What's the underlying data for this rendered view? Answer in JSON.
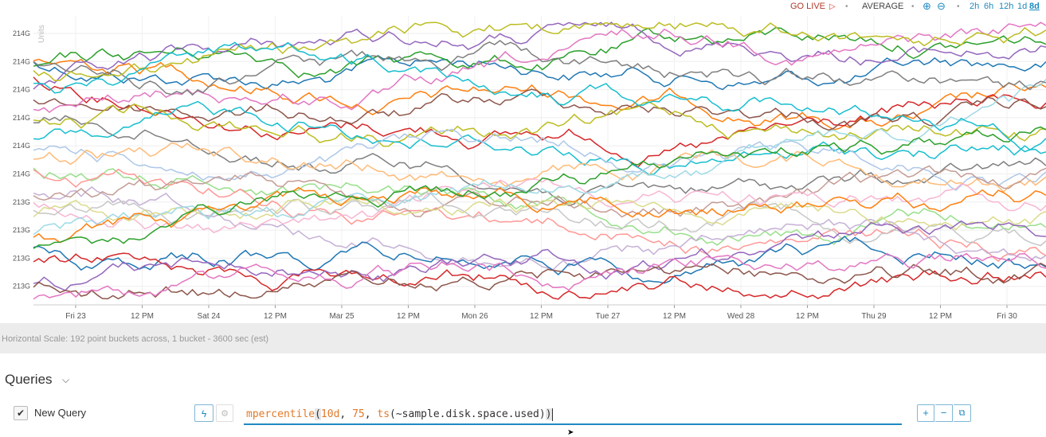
{
  "toolbar": {
    "go_live_label": "GO LIVE",
    "go_live_icon": "play-triangle-icon",
    "aggregation_label": "AVERAGE",
    "zoom_in_icon": "zoom-in-icon",
    "zoom_out_icon": "zoom-out-icon",
    "time_ranges": [
      "2h",
      "6h",
      "12h",
      "1d",
      "8d"
    ],
    "selected_range": "8d"
  },
  "chart_data": {
    "type": "line",
    "ylabel": "Units",
    "y_tick_labels": [
      "214G",
      "214G",
      "214G",
      "214G",
      "214G",
      "214G",
      "213G",
      "213G",
      "213G",
      "213G"
    ],
    "x_tick_labels": [
      "Fri 23",
      "12 PM",
      "Sat 24",
      "12 PM",
      "Mar 25",
      "12 PM",
      "Mon 26",
      "12 PM",
      "Tue 27",
      "12 PM",
      "Wed 28",
      "12 PM",
      "Thu 29",
      "12 PM",
      "Fri 30"
    ],
    "grid": true,
    "series_count": 30,
    "points_per_series": 192,
    "series_colors": [
      "#1f77b4",
      "#ff7f0e",
      "#2ca02c",
      "#d62728",
      "#9467bd",
      "#8c564b",
      "#e377c2",
      "#7f7f7f",
      "#bcbd22",
      "#17becf",
      "#aec7e8",
      "#ffbb78",
      "#98df8a",
      "#ff9896",
      "#c5b0d5",
      "#c49c94",
      "#f7b6d2",
      "#c7c7c7",
      "#dbdb8d",
      "#9edae5",
      "#1f77b4",
      "#ff7f0e",
      "#2ca02c",
      "#d62728",
      "#9467bd",
      "#8c564b",
      "#e377c2",
      "#7f7f7f",
      "#bcbd22",
      "#17becf"
    ]
  },
  "scale_info": "Horizontal Scale: 192 point buckets across, 1 bucket - 3600 sec (est)",
  "queries": {
    "title": "Queries",
    "items": [
      {
        "name": "New Query",
        "checked": true,
        "expression_fn": "mpercentile",
        "expression_open": "(",
        "arg1": "10d",
        "sep1": ", ",
        "arg2": "75",
        "sep2": ", ",
        "fn2": "ts",
        "arg3": "(~sample.disk.space.used)",
        "expression_close": ")"
      }
    ],
    "add_label": "+",
    "remove_label": "−"
  },
  "accent_color": "#1f8ac0"
}
